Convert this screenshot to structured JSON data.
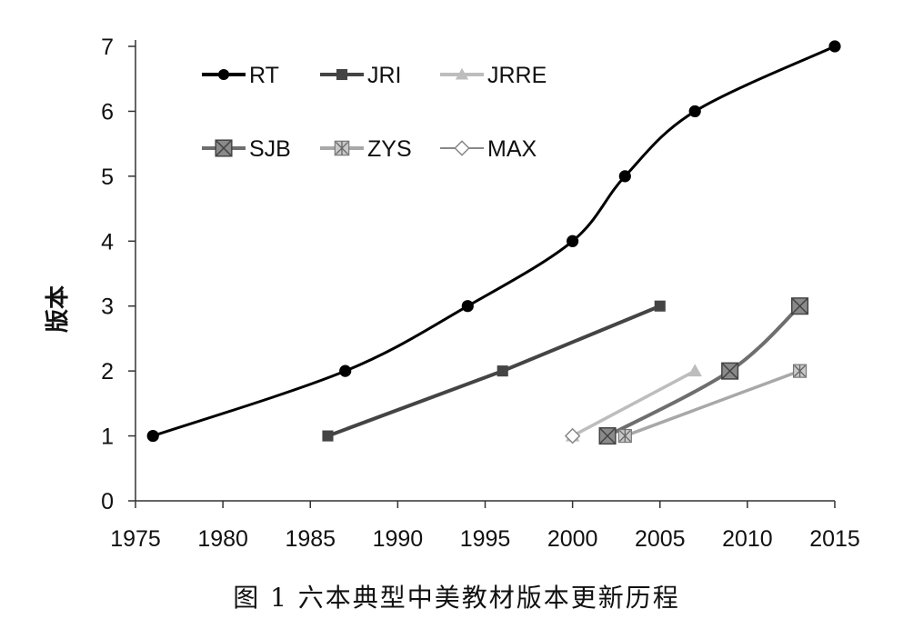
{
  "caption": "图 1  六本典型中美教材版本更新历程",
  "chart_data": {
    "type": "line",
    "ylabel": "版本",
    "xlabel": "",
    "xlim": [
      1975,
      2015
    ],
    "ylim": [
      0,
      7
    ],
    "xticks": [
      1975,
      1980,
      1985,
      1990,
      1995,
      2000,
      2005,
      2010,
      2015
    ],
    "yticks": [
      0,
      1,
      2,
      3,
      4,
      5,
      6,
      7
    ],
    "grid": false,
    "legend_position": "top-left",
    "series": [
      {
        "name": "RT",
        "marker": "circle",
        "color": "#000000",
        "smooth": true,
        "x": [
          1976,
          1987,
          1994,
          2000,
          2003,
          2007,
          2015
        ],
        "y": [
          1,
          2,
          3,
          4,
          5,
          6,
          7
        ]
      },
      {
        "name": "JRI",
        "marker": "square",
        "color": "#444444",
        "smooth": false,
        "x": [
          1986,
          1996,
          2005
        ],
        "y": [
          1,
          2,
          3
        ]
      },
      {
        "name": "JRRE",
        "marker": "triangle",
        "color": "#bdbdbd",
        "smooth": false,
        "x": [
          2000,
          2007
        ],
        "y": [
          1,
          2
        ]
      },
      {
        "name": "SJB",
        "marker": "square-x",
        "color": "#6e6e6e",
        "smooth": true,
        "x": [
          2002,
          2009,
          2013
        ],
        "y": [
          1,
          2,
          3
        ]
      },
      {
        "name": "ZYS",
        "marker": "square-asterisk",
        "color": "#a8a8a8",
        "smooth": false,
        "x": [
          2003,
          2013
        ],
        "y": [
          1,
          2
        ]
      },
      {
        "name": "MAX",
        "marker": "diamond",
        "color": "#888888",
        "smooth": false,
        "x": [
          2000
        ],
        "y": [
          1
        ]
      }
    ]
  }
}
